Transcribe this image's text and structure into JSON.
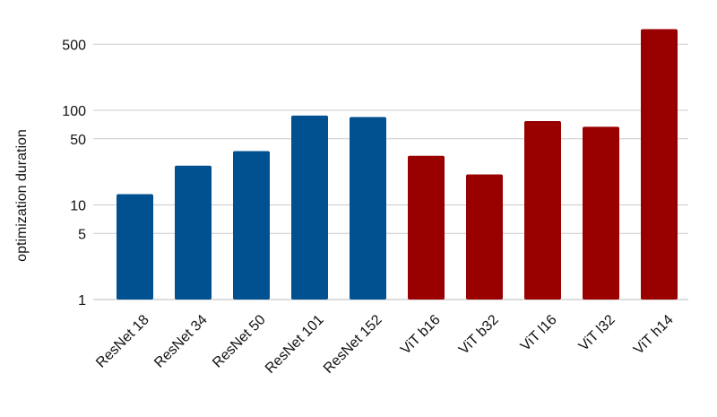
{
  "chart_data": {
    "type": "bar",
    "title": "",
    "xlabel": "",
    "ylabel": "optimization duration",
    "yscale": "log",
    "ylim": [
      1,
      800
    ],
    "yticks": [
      1,
      5,
      10,
      50,
      100,
      500
    ],
    "ytick_labels": [
      "1",
      "5",
      "10",
      "50",
      "100",
      "500"
    ],
    "grid": true,
    "categories": [
      "ResNet 18",
      "ResNet 34",
      "ResNet 50",
      "ResNet 101",
      "ResNet 152",
      "ViT b16",
      "ViT b32",
      "ViT l16",
      "ViT l32",
      "ViT h14"
    ],
    "values": [
      13,
      26,
      37,
      88,
      85,
      33,
      21,
      77,
      67,
      720
    ],
    "bar_colors": [
      "#01508f",
      "#01508f",
      "#01508f",
      "#01508f",
      "#01508f",
      "#990000",
      "#990000",
      "#990000",
      "#990000",
      "#990000"
    ]
  }
}
